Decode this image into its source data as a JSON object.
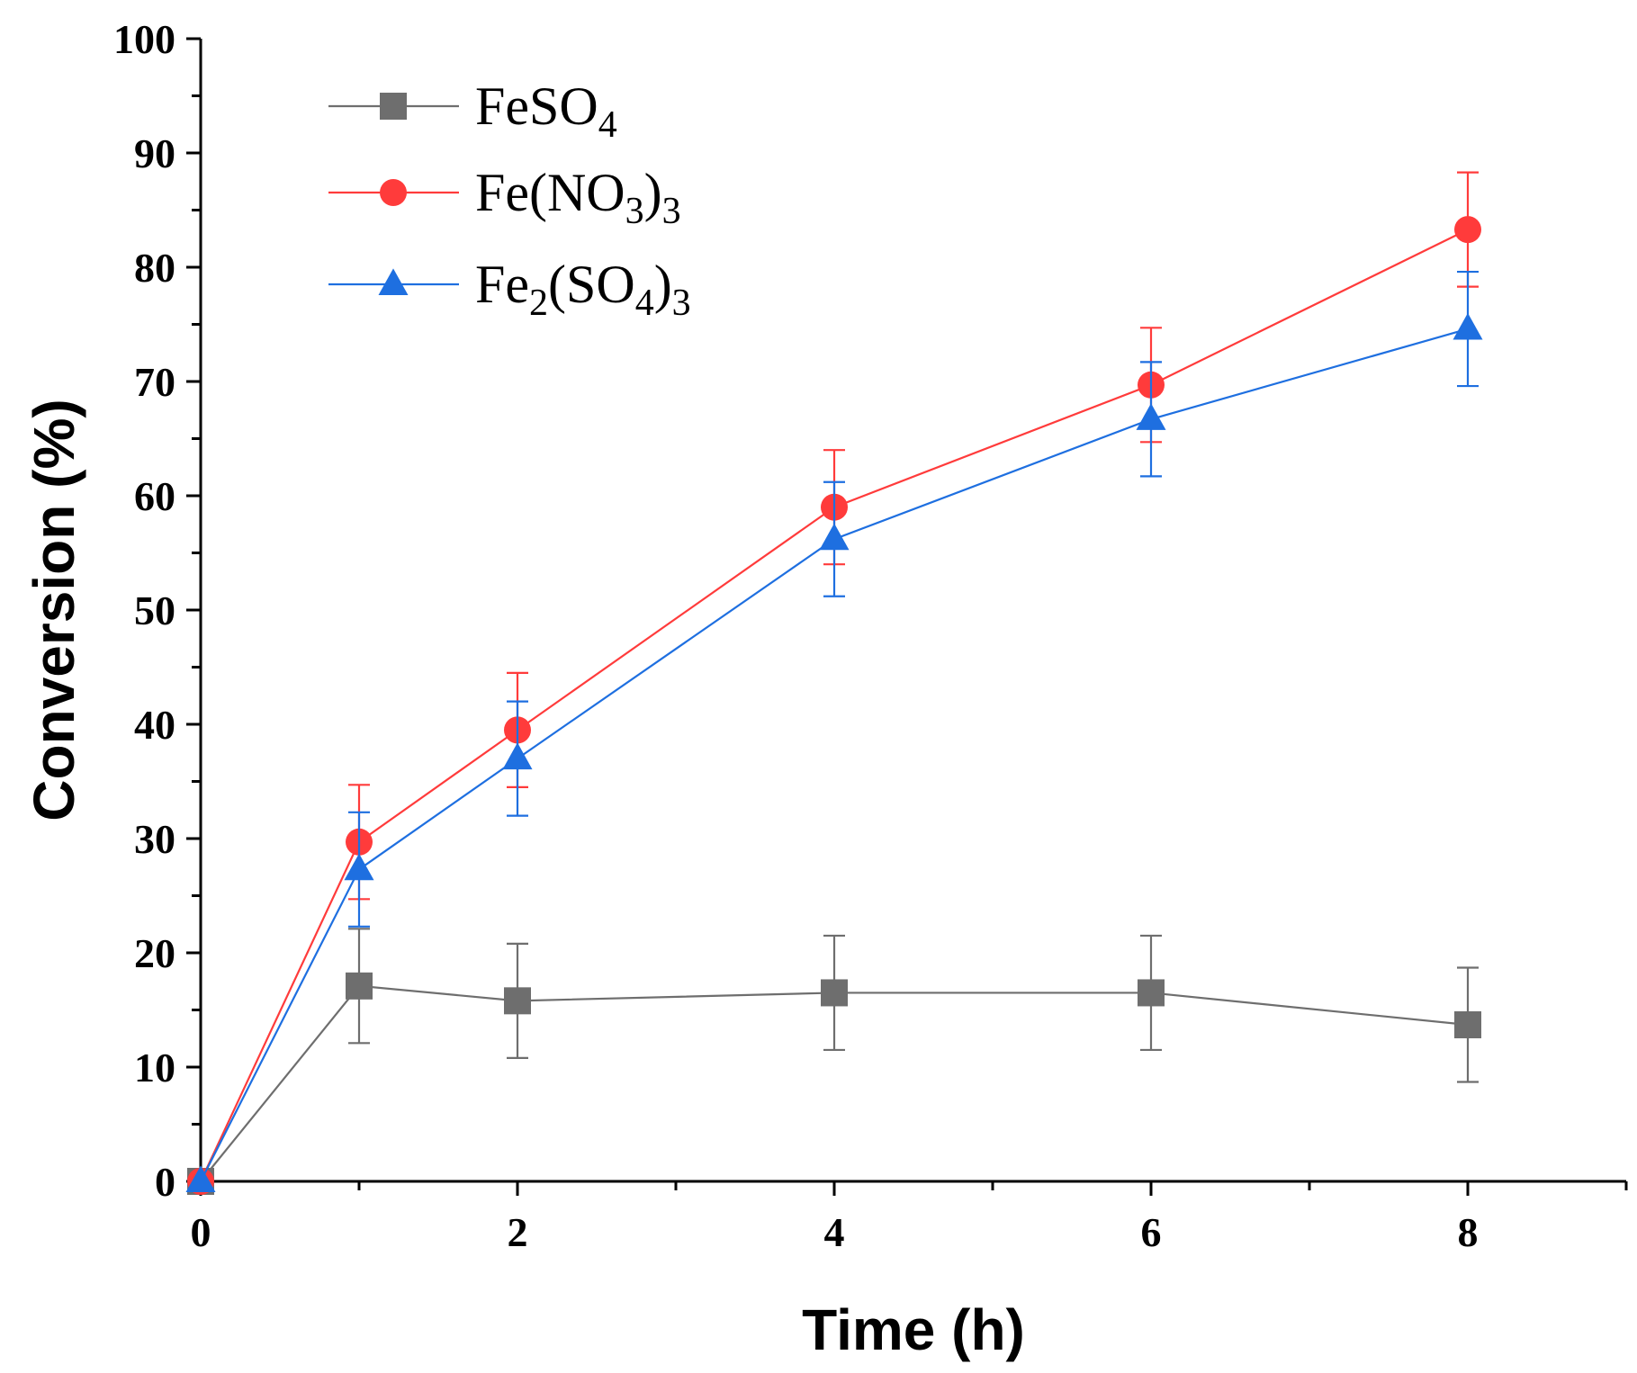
{
  "chart_data": {
    "type": "line",
    "title": "",
    "xlabel": "Time (h)",
    "ylabel": "Conversion (%)",
    "xlim": [
      0,
      9
    ],
    "ylim": [
      0,
      100
    ],
    "x_ticks": [
      0,
      2,
      4,
      6,
      8
    ],
    "y_ticks": [
      0,
      10,
      20,
      30,
      40,
      50,
      60,
      70,
      80,
      90,
      100
    ],
    "grid": false,
    "legend_position": "top-left",
    "series": [
      {
        "name": "FeSO4",
        "legend": {
          "main": "FeSO",
          "sub": "4",
          "tail": ""
        },
        "color": "#6e6e6e",
        "marker": "square",
        "x": [
          0,
          1,
          2,
          4,
          6,
          8
        ],
        "y": [
          0,
          17.1,
          15.8,
          16.5,
          16.5,
          13.7
        ],
        "error": [
          0,
          5,
          5,
          5,
          5,
          5
        ]
      },
      {
        "name": "Fe(NO3)3",
        "legend": {
          "main": "Fe(NO",
          "sub": "3",
          "mid": ")",
          "sub2": "3"
        },
        "color": "#ff3b3b",
        "marker": "circle",
        "x": [
          0,
          1,
          2,
          4,
          6,
          8
        ],
        "y": [
          0,
          29.7,
          39.5,
          59.0,
          69.7,
          83.3
        ],
        "error": [
          0,
          5,
          5,
          5,
          5,
          5
        ]
      },
      {
        "name": "Fe2(SO4)3",
        "legend": {
          "main": "Fe",
          "sub": "2",
          "mid": "(SO",
          "sub2": "4",
          "tail": ")",
          "sub3": "3"
        },
        "color": "#1e6fe0",
        "marker": "triangle",
        "x": [
          0,
          1,
          2,
          4,
          6,
          8
        ],
        "y": [
          0,
          27.3,
          37.0,
          56.2,
          66.7,
          74.6
        ],
        "error": [
          0,
          5,
          5,
          5,
          5,
          5
        ]
      }
    ]
  }
}
